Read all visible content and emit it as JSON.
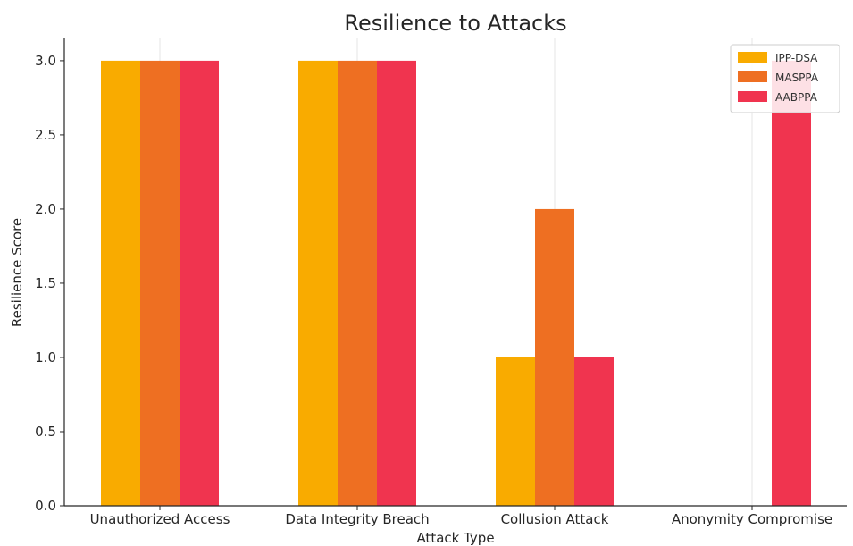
{
  "chart_data": {
    "type": "bar",
    "title": "Resilience to Attacks",
    "xlabel": "Attack Type",
    "ylabel": "Resilience Score",
    "categories": [
      "Unauthorized Access",
      "Data Integrity Breach",
      "Collusion Attack",
      "Anonymity Compromise"
    ],
    "series": [
      {
        "name": "IPP-DSA",
        "values": [
          3,
          3,
          1,
          0
        ],
        "color": "#f9ab00"
      },
      {
        "name": "MASPPA",
        "values": [
          3,
          3,
          2,
          0
        ],
        "color": "#ee6f22"
      },
      {
        "name": "AABPPA",
        "values": [
          3,
          3,
          1,
          3
        ],
        "color": "#f0344f"
      }
    ],
    "ylim": [
      0,
      3.15
    ],
    "yticks": [
      "0.0",
      "0.5",
      "1.0",
      "1.5",
      "2.0",
      "2.5",
      "3.0"
    ],
    "grid": "vertical",
    "legend_position": "top-right"
  }
}
